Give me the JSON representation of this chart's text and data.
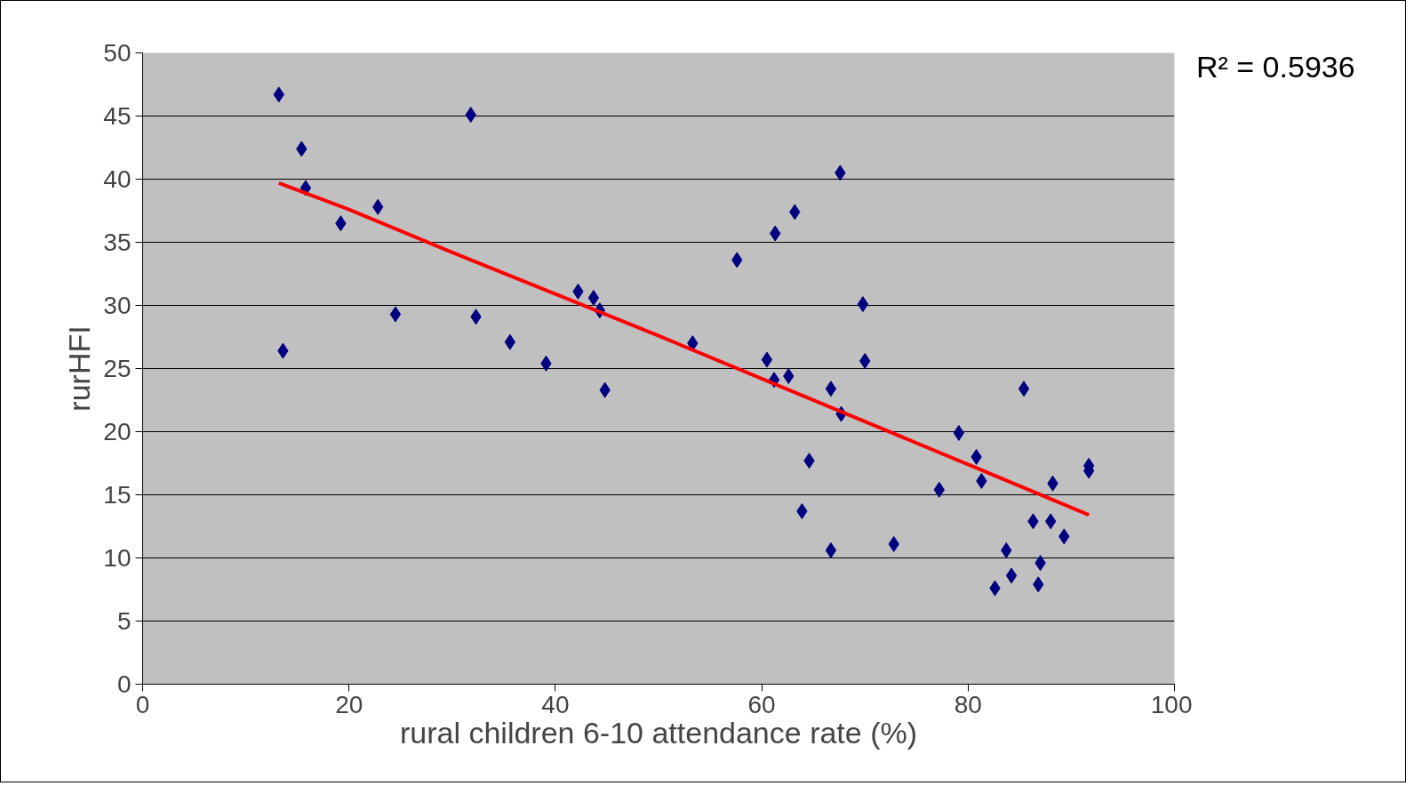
{
  "chart_data": {
    "type": "scatter",
    "xlabel": "rural children 6-10 attendance rate (%)",
    "ylabel": "rurHFI",
    "annotations": [
      "R² = 0.5936"
    ],
    "xlim": [
      0,
      100
    ],
    "xticks": [
      0,
      20,
      40,
      60,
      80,
      100
    ],
    "ylim": [
      0,
      50
    ],
    "yticks": [
      0,
      5,
      10,
      15,
      20,
      25,
      30,
      35,
      40,
      45,
      50
    ],
    "grid": "y",
    "series": [
      {
        "color": "#000080",
        "marker": "diamond",
        "x": [
          13.2,
          15.4,
          15.8,
          13.6,
          19.2,
          22.8,
          24.5,
          31.8,
          32.3,
          35.6,
          39.1,
          42.2,
          43.7,
          44.3,
          44.8,
          53.3,
          57.6,
          60.5,
          61.2,
          61.3,
          62.6,
          63.2,
          63.9,
          64.6,
          66.7,
          66.7,
          67.6,
          67.7,
          69.8,
          70.0,
          72.8,
          77.2,
          79.1,
          80.8,
          81.3,
          82.6,
          83.7,
          84.2,
          85.4,
          86.3,
          86.8,
          87.0,
          88.0,
          88.2,
          89.3,
          91.7,
          91.7
        ],
        "values": [
          46.7,
          42.4,
          39.3,
          26.4,
          36.5,
          37.8,
          29.3,
          45.1,
          29.1,
          27.1,
          25.4,
          31.1,
          30.6,
          29.6,
          23.3,
          27.0,
          33.6,
          25.7,
          24.1,
          35.7,
          24.4,
          37.4,
          13.7,
          17.7,
          23.4,
          10.6,
          40.5,
          21.4,
          30.1,
          25.6,
          11.1,
          15.4,
          19.9,
          18.0,
          16.1,
          7.6,
          10.6,
          8.6,
          23.4,
          12.9,
          7.9,
          9.6,
          12.9,
          15.9,
          11.7,
          17.3,
          16.9
        ]
      },
      {
        "type": "line",
        "color": "#ff0000",
        "marker": "none",
        "line_style": "solid",
        "x": [
          13.2,
          20,
          30,
          40,
          50,
          60,
          70,
          80,
          91.7
        ],
        "values": [
          39.7,
          37.6,
          34.2,
          30.9,
          27.6,
          24.2,
          20.8,
          17.4,
          13.4
        ]
      }
    ]
  }
}
